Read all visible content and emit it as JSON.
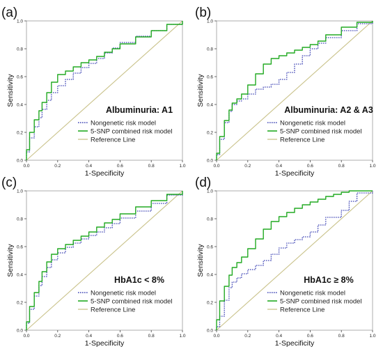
{
  "figure": {
    "layout": "2x2 grid of ROC curves"
  },
  "styles": {
    "nongenetic_color": "#3f45b5",
    "snp_color": "#22aa22",
    "reference_color": "#c9c28a",
    "axis_color": "#444444",
    "frame_color": "#999999"
  },
  "chart_data": [
    {
      "type": "line",
      "panel_label": "(a)",
      "subtitle": "Albuminuria: A1",
      "xlabel": "1-Specificity",
      "ylabel": "Sensitivity",
      "xlim": [
        0,
        1
      ],
      "ylim": [
        0,
        1
      ],
      "xticks": [
        "0.0",
        "0.2",
        "0.4",
        "0.6",
        "0.8",
        "1.0"
      ],
      "yticks": [
        "0.0",
        "0.2",
        "0.4",
        "0.6",
        "0.8",
        "1.0"
      ],
      "legend_placement": "bottom-right",
      "series": [
        {
          "name": "Nongenetic risk model",
          "style": "dotted",
          "x": [
            0,
            0.02,
            0.05,
            0.08,
            0.1,
            0.13,
            0.16,
            0.2,
            0.25,
            0.3,
            0.35,
            0.4,
            0.45,
            0.5,
            0.55,
            0.6,
            0.7,
            0.8,
            0.9,
            1.0
          ],
          "y": [
            0,
            0.12,
            0.2,
            0.28,
            0.33,
            0.4,
            0.46,
            0.51,
            0.56,
            0.6,
            0.65,
            0.68,
            0.71,
            0.75,
            0.79,
            0.82,
            0.87,
            0.91,
            0.95,
            1.0
          ]
        },
        {
          "name": "5-SNP combined risk model",
          "style": "solid",
          "x": [
            0,
            0.02,
            0.05,
            0.08,
            0.1,
            0.13,
            0.16,
            0.2,
            0.25,
            0.3,
            0.35,
            0.4,
            0.45,
            0.5,
            0.55,
            0.6,
            0.7,
            0.8,
            0.9,
            1.0
          ],
          "y": [
            0,
            0.15,
            0.25,
            0.33,
            0.38,
            0.45,
            0.52,
            0.6,
            0.63,
            0.65,
            0.69,
            0.71,
            0.73,
            0.76,
            0.79,
            0.81,
            0.86,
            0.91,
            0.95,
            1.0
          ]
        },
        {
          "name": "Reference Line",
          "style": "solid",
          "x": [
            0,
            1
          ],
          "y": [
            0,
            1
          ]
        }
      ]
    },
    {
      "type": "line",
      "panel_label": "(b)",
      "subtitle": "Albuminuria: A2 & A3",
      "xlabel": "1-Specificity",
      "ylabel": "Sensitivity",
      "xlim": [
        0,
        1
      ],
      "ylim": [
        0,
        1
      ],
      "xticks": [
        "0.0",
        "0.2",
        "0.4",
        "0.6",
        "0.8",
        "1.0"
      ],
      "yticks": [
        "0.0",
        "0.2",
        "0.4",
        "0.6",
        "0.8",
        "1.0"
      ],
      "legend_placement": "bottom-right",
      "series": [
        {
          "name": "Nongenetic risk model",
          "style": "dotted",
          "x": [
            0,
            0.02,
            0.05,
            0.08,
            0.1,
            0.13,
            0.16,
            0.2,
            0.25,
            0.3,
            0.35,
            0.4,
            0.45,
            0.5,
            0.55,
            0.6,
            0.65,
            0.7,
            0.8,
            0.9,
            1.0
          ],
          "y": [
            0,
            0.08,
            0.22,
            0.32,
            0.38,
            0.42,
            0.43,
            0.45,
            0.5,
            0.52,
            0.53,
            0.56,
            0.6,
            0.66,
            0.72,
            0.78,
            0.82,
            0.86,
            0.9,
            0.96,
            1.0
          ]
        },
        {
          "name": "5-SNP combined risk model",
          "style": "solid",
          "x": [
            0,
            0.02,
            0.05,
            0.08,
            0.1,
            0.13,
            0.16,
            0.2,
            0.25,
            0.3,
            0.35,
            0.4,
            0.45,
            0.5,
            0.55,
            0.6,
            0.65,
            0.7,
            0.8,
            0.9,
            1.0
          ],
          "y": [
            0,
            0.1,
            0.24,
            0.33,
            0.39,
            0.43,
            0.45,
            0.5,
            0.58,
            0.66,
            0.72,
            0.74,
            0.76,
            0.78,
            0.8,
            0.82,
            0.84,
            0.87,
            0.93,
            0.98,
            1.0
          ]
        },
        {
          "name": "Reference Line",
          "style": "solid",
          "x": [
            0,
            1
          ],
          "y": [
            0,
            1
          ]
        }
      ]
    },
    {
      "type": "line",
      "panel_label": "(c)",
      "subtitle": "HbA1c < 8%",
      "xlabel": "1-Specificity",
      "ylabel": "Sensitivity",
      "xlim": [
        0,
        1
      ],
      "ylim": [
        0,
        1
      ],
      "xticks": [
        "0.0",
        "0.2",
        "0.4",
        "0.6",
        "0.8",
        "1.0"
      ],
      "yticks": [
        "0.0",
        "0.2",
        "0.4",
        "0.6",
        "0.8",
        "1.0"
      ],
      "legend_placement": "bottom-right",
      "series": [
        {
          "name": "Nongenetic risk model",
          "style": "dotted",
          "x": [
            0,
            0.02,
            0.05,
            0.08,
            0.1,
            0.13,
            0.16,
            0.2,
            0.25,
            0.3,
            0.35,
            0.4,
            0.45,
            0.5,
            0.55,
            0.6,
            0.7,
            0.8,
            0.9,
            1.0
          ],
          "y": [
            0,
            0.1,
            0.2,
            0.29,
            0.35,
            0.42,
            0.48,
            0.53,
            0.58,
            0.61,
            0.64,
            0.67,
            0.69,
            0.72,
            0.75,
            0.78,
            0.83,
            0.88,
            0.94,
            1.0
          ]
        },
        {
          "name": "5-SNP combined risk model",
          "style": "solid",
          "x": [
            0,
            0.02,
            0.05,
            0.08,
            0.1,
            0.13,
            0.16,
            0.2,
            0.25,
            0.3,
            0.35,
            0.4,
            0.45,
            0.5,
            0.55,
            0.6,
            0.7,
            0.8,
            0.9,
            1.0
          ],
          "y": [
            0,
            0.12,
            0.22,
            0.32,
            0.38,
            0.46,
            0.52,
            0.57,
            0.6,
            0.63,
            0.66,
            0.69,
            0.72,
            0.76,
            0.78,
            0.81,
            0.86,
            0.91,
            0.95,
            1.0
          ]
        },
        {
          "name": "Reference Line",
          "style": "solid",
          "x": [
            0,
            1
          ],
          "y": [
            0,
            1
          ]
        }
      ]
    },
    {
      "type": "line",
      "panel_label": "(d)",
      "subtitle": "HbA1c ≥ 8%",
      "xlabel": "1-Specificity",
      "ylabel": "Sensitivity",
      "xlim": [
        0,
        1
      ],
      "ylim": [
        0,
        1
      ],
      "xticks": [
        "0.0",
        "0.2",
        "0.4",
        "0.6",
        "0.8",
        "1.0"
      ],
      "yticks": [
        "0.0",
        "0.2",
        "0.4",
        "0.6",
        "0.8",
        "1.0"
      ],
      "legend_placement": "bottom-right",
      "series": [
        {
          "name": "Nongenetic risk model",
          "style": "dotted",
          "x": [
            0,
            0.02,
            0.05,
            0.08,
            0.1,
            0.13,
            0.16,
            0.2,
            0.25,
            0.3,
            0.35,
            0.4,
            0.45,
            0.5,
            0.55,
            0.6,
            0.65,
            0.7,
            0.8,
            0.85,
            0.9,
            1.0
          ],
          "y": [
            0,
            0.05,
            0.15,
            0.28,
            0.33,
            0.36,
            0.39,
            0.42,
            0.45,
            0.48,
            0.52,
            0.57,
            0.61,
            0.64,
            0.66,
            0.68,
            0.73,
            0.78,
            0.84,
            0.88,
            0.97,
            1.0
          ]
        },
        {
          "name": "5-SNP combined risk model",
          "style": "solid",
          "x": [
            0,
            0.02,
            0.05,
            0.08,
            0.1,
            0.13,
            0.16,
            0.2,
            0.25,
            0.3,
            0.35,
            0.4,
            0.45,
            0.5,
            0.55,
            0.6,
            0.65,
            0.7,
            0.75,
            0.8,
            0.85,
            0.9,
            1.0
          ],
          "y": [
            0,
            0.15,
            0.27,
            0.36,
            0.43,
            0.47,
            0.5,
            0.55,
            0.62,
            0.69,
            0.76,
            0.8,
            0.83,
            0.86,
            0.89,
            0.91,
            0.93,
            0.95,
            0.97,
            0.98,
            1.0,
            1.0,
            1.0
          ]
        },
        {
          "name": "Reference Line",
          "style": "solid",
          "x": [
            0,
            1
          ],
          "y": [
            0,
            1
          ]
        }
      ]
    }
  ]
}
